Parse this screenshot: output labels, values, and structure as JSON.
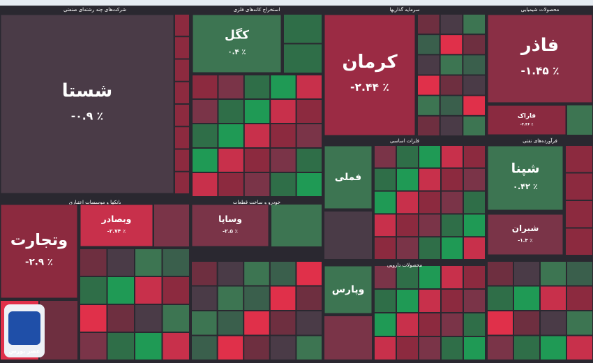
{
  "sectors": [
    {
      "title": "شرکت‌های چند رشته‌ای صنعتی",
      "tiles": [
        {
          "label": "شستا",
          "change": "-۰.۹ ٪",
          "color": "#4a3b47"
        }
      ]
    },
    {
      "title": "استخراج کانه‌های فلزی",
      "tiles": [
        {
          "label": "کگل",
          "change": "۰.۴ ٪",
          "color": "#3d7552"
        }
      ]
    },
    {
      "title": "سرمایه گذاریها",
      "tiles": [
        {
          "label": "کرمان",
          "change": "-۲.۴۴ ٪",
          "color": "#9b2b44"
        }
      ]
    },
    {
      "title": "محصولات شیمیایی",
      "tiles": [
        {
          "label": "فاذر",
          "change": "-۱.۴۵ ٪",
          "color": "#8a2f45"
        },
        {
          "label": "فاراک",
          "change": "-۳.۴۶ ٪",
          "color": "#8a2a40"
        }
      ]
    },
    {
      "title": "بانکها و موسسات اعتباری",
      "tiles": [
        {
          "label": "وتجارت",
          "change": "-۲.۹ ٪",
          "color": "#8c2a3f"
        },
        {
          "label": "وبصادر",
          "change": "-۲.۷۴ ٪",
          "color": "#c8304b"
        }
      ]
    },
    {
      "title": "خودرو و ساخت قطعات",
      "tiles": [
        {
          "label": "وساپا",
          "change": "-۲.۵ ٪",
          "color": "#7a3448"
        }
      ]
    },
    {
      "title": "فلزات اساسی",
      "tiles": [
        {
          "label": "فملی",
          "color": "#3d7552"
        }
      ]
    },
    {
      "title": "فرآورده‌های نفتی",
      "tiles": [
        {
          "label": "شپنا",
          "change": "۰.۴۲ ٪",
          "color": "#3d7552"
        },
        {
          "label": "شبران",
          "change": "-۱.۴ ٪",
          "color": "#7a3448"
        }
      ]
    },
    {
      "title": "محصولات دارویی",
      "tiles": [
        {
          "label": "وپارس",
          "color": "#3d7552"
        }
      ]
    }
  ],
  "logo": "عصر بورس"
}
